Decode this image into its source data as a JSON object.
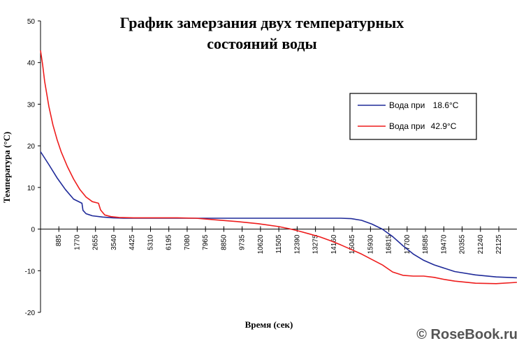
{
  "chart_data": {
    "type": "line",
    "title_lines": [
      "График замерзания двух температурных",
      "состояний воды"
    ],
    "xlabel": "Время (сек)",
    "ylabel": "Температура (°C)",
    "ylim": [
      -20,
      50
    ],
    "yticks": [
      -20,
      -10,
      0,
      10,
      20,
      30,
      40,
      50
    ],
    "xlim": [
      0,
      23000
    ],
    "xticks": [
      885,
      1770,
      2655,
      3540,
      4425,
      5310,
      6195,
      7080,
      7965,
      8850,
      9735,
      10620,
      11505,
      12390,
      13275,
      14160,
      15045,
      15930,
      16815,
      17700,
      18585,
      19470,
      20355,
      21240,
      22125
    ],
    "legend_position": "right",
    "series": [
      {
        "name": "Вода при 18.6°C",
        "color": "#1f2a99",
        "x": [
          0,
          400,
          800,
          1200,
          1600,
          2000,
          2050,
          2200,
          2500,
          3000,
          3500,
          4000,
          5000,
          6000,
          7000,
          8000,
          9000,
          10000,
          11000,
          12000,
          13000,
          14000,
          14500,
          15000,
          15500,
          16000,
          16500,
          17000,
          17500,
          18000,
          18500,
          19000,
          20000,
          21000,
          22000,
          23000
        ],
        "values": [
          18.6,
          15.5,
          12.3,
          9.5,
          7.2,
          6.2,
          4.5,
          3.7,
          3.2,
          2.9,
          2.7,
          2.6,
          2.6,
          2.6,
          2.6,
          2.6,
          2.6,
          2.6,
          2.6,
          2.6,
          2.6,
          2.6,
          2.6,
          2.5,
          2.1,
          1.2,
          0.0,
          -1.8,
          -4.0,
          -6.0,
          -7.5,
          -8.6,
          -10.2,
          -11.0,
          -11.5,
          -11.7
        ]
      },
      {
        "name": "Вода при 42.9°C",
        "color": "#ee1c1c",
        "x": [
          0,
          100,
          200,
          400,
          600,
          800,
          1000,
          1300,
          1600,
          1900,
          2200,
          2500,
          2800,
          2900,
          3100,
          3400,
          3800,
          4500,
          5500,
          6500,
          7500,
          8000,
          8500,
          9500,
          10500,
          11500,
          12000,
          12500,
          13000,
          13500,
          14000,
          14500,
          15000,
          15500,
          16000,
          16500,
          17000,
          17500,
          18000,
          18500,
          19000,
          19500,
          20000,
          21000,
          22000,
          23000
        ],
        "values": [
          42.9,
          39.5,
          35.5,
          29.5,
          25.0,
          21.5,
          18.5,
          15.0,
          12.0,
          9.5,
          7.7,
          6.6,
          6.2,
          4.6,
          3.4,
          3.0,
          2.8,
          2.7,
          2.7,
          2.7,
          2.6,
          2.4,
          2.2,
          1.8,
          1.3,
          0.6,
          0.1,
          -0.5,
          -1.2,
          -1.9,
          -2.8,
          -3.8,
          -4.9,
          -6.0,
          -7.3,
          -8.6,
          -10.3,
          -11.1,
          -11.3,
          -11.3,
          -11.6,
          -12.1,
          -12.5,
          -13.0,
          -13.1,
          -12.8
        ]
      }
    ]
  },
  "legend": {
    "items": [
      {
        "prefix": "Вода при",
        "value": "18.6°C"
      },
      {
        "prefix": "Вода при",
        "value": "42.9°C"
      }
    ]
  },
  "watermark": "© RoseBook.ru"
}
